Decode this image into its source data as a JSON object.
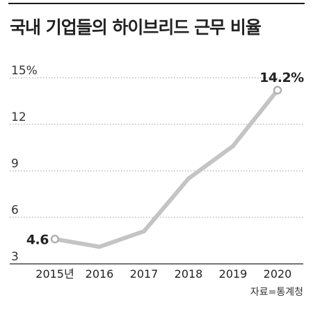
{
  "chart_data": {
    "type": "line",
    "title": "국내 기업들의 하이브리드 근무 비율",
    "source": "자료=통계청",
    "categories": [
      "2015년",
      "2016",
      "2017",
      "2018",
      "2019",
      "2020"
    ],
    "series": [
      {
        "values": [
          4.6,
          4.1,
          5.1,
          8.5,
          10.6,
          14.2
        ]
      }
    ],
    "y_ticks": [
      "15%",
      "12",
      "9",
      "6",
      "3"
    ],
    "y_tick_values": [
      15,
      12,
      9,
      6,
      3
    ],
    "ylim": [
      3,
      15
    ],
    "grid": true,
    "data_labels": [
      {
        "index": 0,
        "text": "4.6"
      },
      {
        "index": 5,
        "text": "14.2%"
      }
    ],
    "colors": {
      "line": "#c4c4c4",
      "marker_stroke": "#b0b0b0",
      "grid": "#9a9a9a",
      "text": "#222222"
    }
  }
}
